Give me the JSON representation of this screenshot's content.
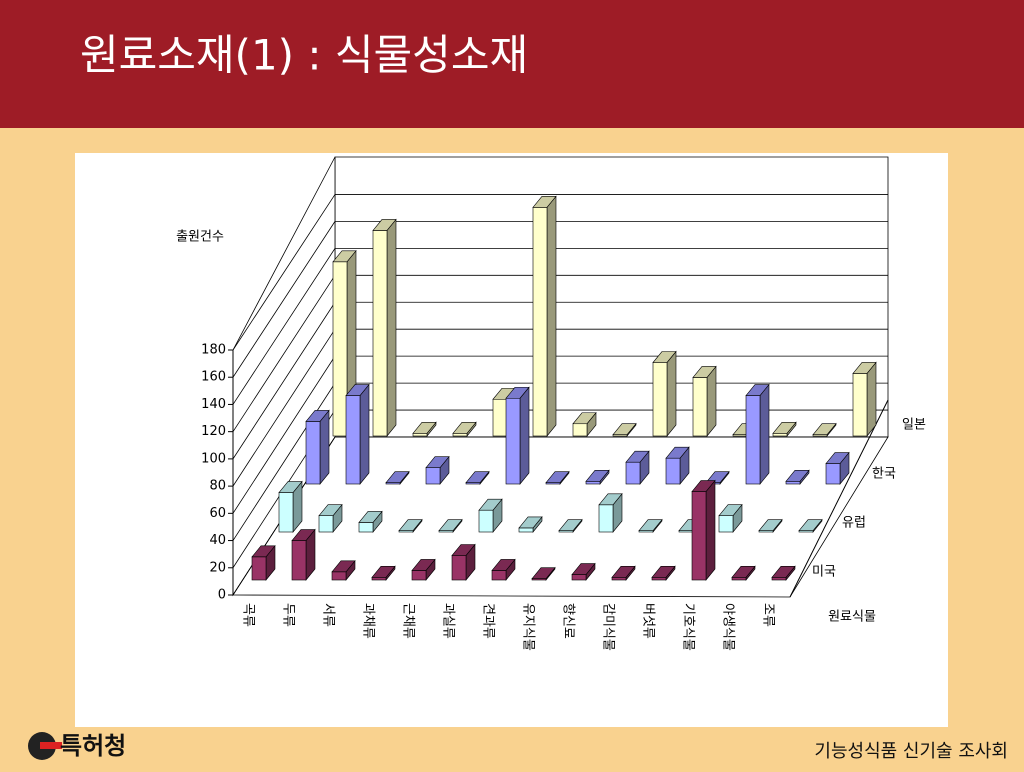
{
  "header": {
    "title": "원료소재(1) : 식물성소재"
  },
  "chart_data": {
    "type": "bar3d",
    "y_label": "출원건수",
    "x_label": "원료식물",
    "categories": [
      "곡류",
      "두류",
      "서류",
      "과채류",
      "근채류",
      "과실류",
      "견과류",
      "유지식물",
      "향신료",
      "감미식물",
      "버섯류",
      "기호식물",
      "야생식물",
      "조류"
    ],
    "series": [
      {
        "name": "미국",
        "color": "#993366",
        "values": [
          17,
          29,
          6,
          2,
          7,
          18,
          7,
          1,
          4,
          2,
          2,
          65,
          2,
          2
        ]
      },
      {
        "name": "유럽",
        "color": "#ccffff",
        "values": [
          29,
          12,
          7,
          1,
          1,
          16,
          3,
          1,
          20,
          1,
          1,
          12,
          1,
          1
        ]
      },
      {
        "name": "한국",
        "color": "#9999ff",
        "values": [
          46,
          65,
          1,
          12,
          1,
          63,
          1,
          2,
          16,
          19,
          1,
          65,
          2,
          15
        ]
      },
      {
        "name": "일본",
        "color": "#ffffcc",
        "values": [
          128,
          151,
          2,
          2,
          27,
          168,
          9,
          1,
          54,
          43,
          1,
          2,
          1,
          46
        ]
      }
    ],
    "ylim": [
      0,
      180
    ],
    "yticks": [
      0,
      20,
      40,
      60,
      80,
      100,
      120,
      140,
      160,
      180
    ]
  },
  "footer": {
    "logo": "특허청",
    "text": "기능성식품 신기술 조사회"
  }
}
